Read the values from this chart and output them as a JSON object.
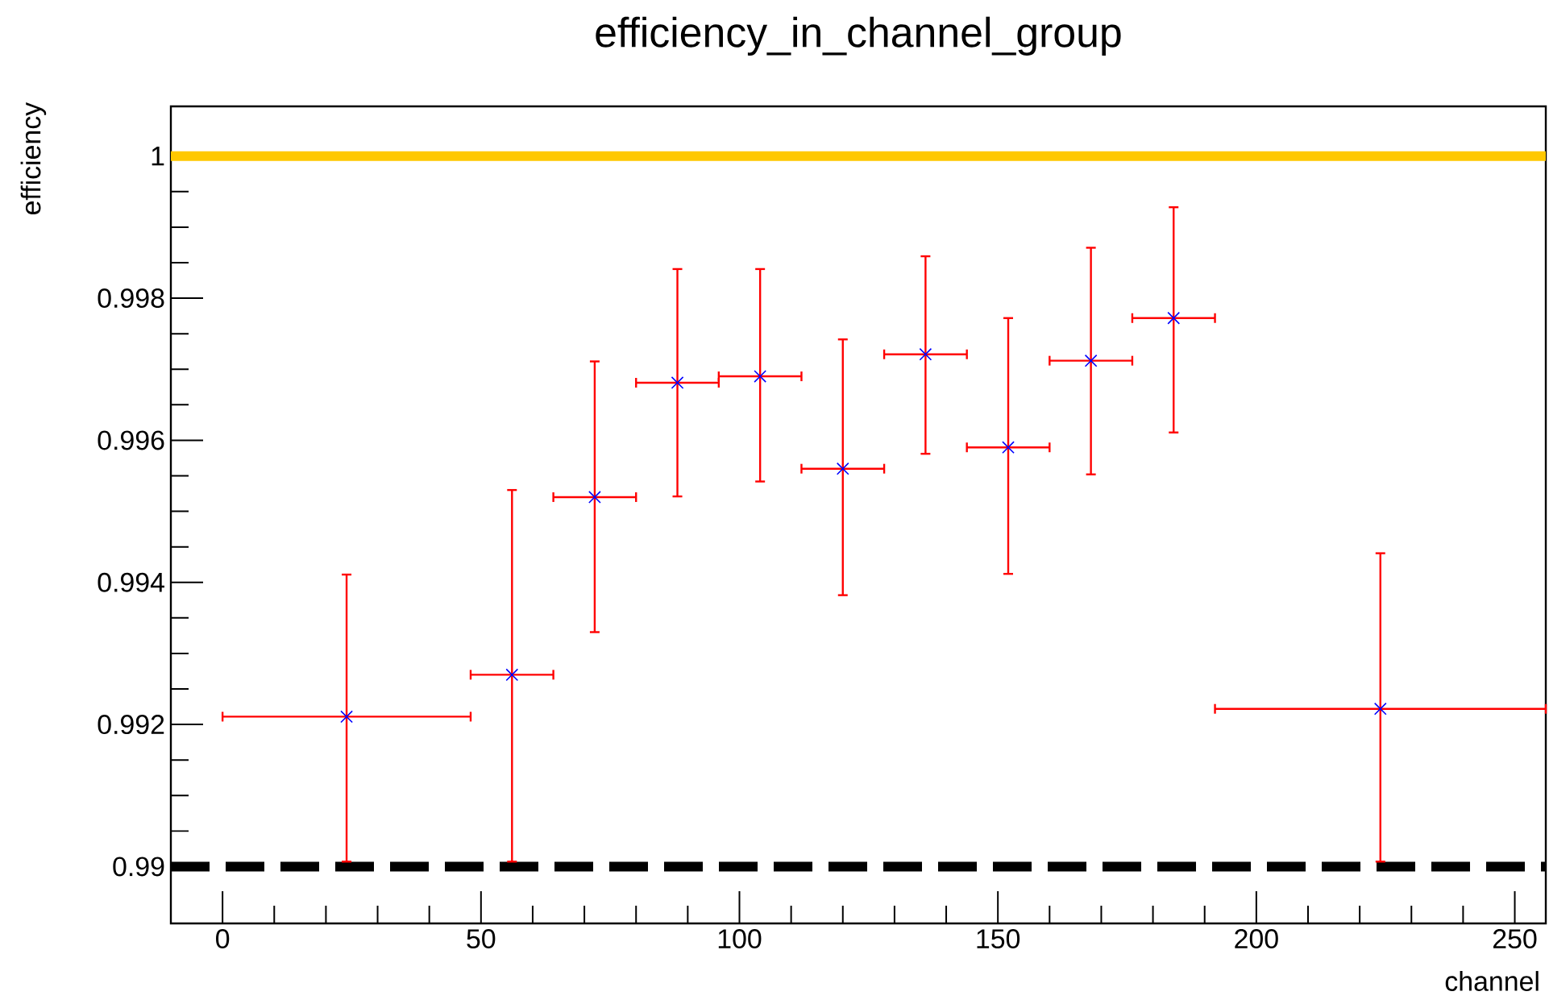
{
  "chart_data": {
    "type": "scatter",
    "title": "efficiency_in_channel_group",
    "xlabel": "channel",
    "ylabel": "efficiency",
    "x": [
      24,
      56,
      72,
      88,
      104,
      120,
      136,
      152,
      168,
      184,
      224
    ],
    "series": [
      {
        "color": "#0000ff",
        "values": [
          0.99211,
          0.9927,
          0.9952,
          0.99681,
          0.9969,
          0.9956,
          0.99721,
          0.9959,
          0.99712,
          0.99772,
          0.99222
        ],
        "errors": [
          [
            0.99007,
            0.99411
          ],
          [
            0.99007,
            0.9953
          ],
          [
            0.9933,
            0.99711
          ],
          [
            0.99521,
            0.99841
          ],
          [
            0.99542,
            0.99841
          ],
          [
            0.99382,
            0.99742
          ],
          [
            0.99581,
            0.99859
          ],
          [
            0.99412,
            0.99772
          ],
          [
            0.99552,
            0.99871
          ],
          [
            0.99611,
            0.99928
          ],
          [
            0.99007,
            0.99441
          ]
        ],
        "xerrors": [
          24,
          8,
          8,
          8,
          8,
          8,
          8,
          8,
          8,
          8,
          32
        ]
      }
    ],
    "marker": "cross",
    "xlim": [
      -10,
      256
    ],
    "ylim": [
      0.9892,
      1.0007
    ],
    "xticks": [
      0,
      50,
      100,
      150,
      200,
      250
    ],
    "yticks": [
      0.99,
      0.992,
      0.994,
      0.996,
      0.998,
      1
    ],
    "ref_lines": [
      {
        "axis": "y",
        "value": 1,
        "color": "#ffc800",
        "line_style": "solid"
      },
      {
        "axis": "y",
        "value": 0.99,
        "color": "#000000",
        "line_style": "dashed"
      }
    ],
    "grid": false
  }
}
